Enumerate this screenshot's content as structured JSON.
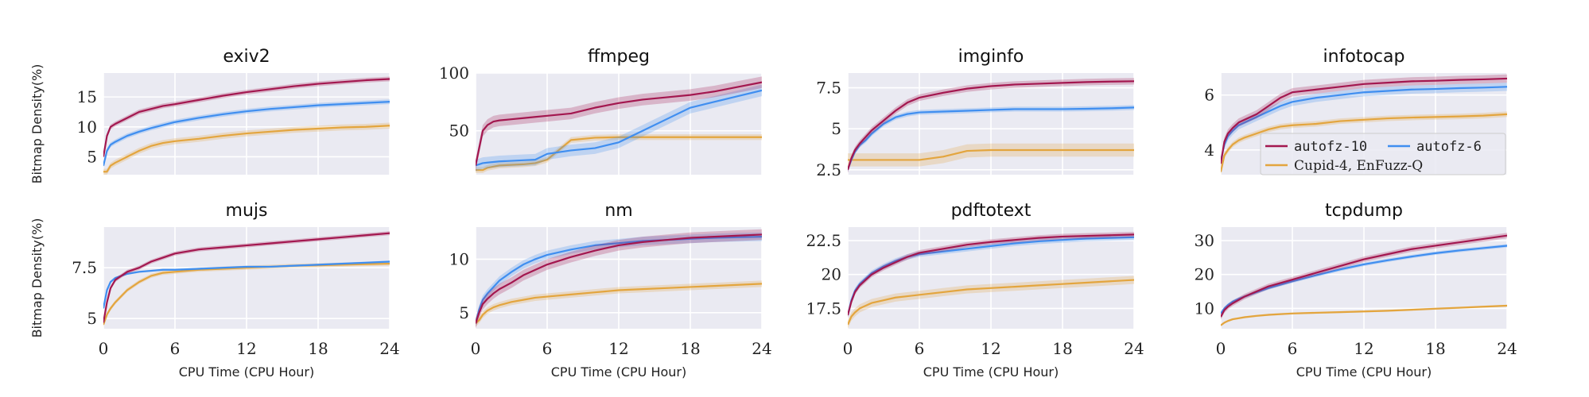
{
  "chart_data": {
    "type": "line",
    "xlabel": "CPU Time (CPU Hour)",
    "ylabel": "Bitmap Density(%)",
    "xlim": [
      0,
      24
    ],
    "xticks": [
      0,
      6,
      12,
      18,
      24
    ],
    "grid": true,
    "legend": {
      "placement": "in-panel infotocap, bottom-right",
      "entries": [
        {
          "key": "autofz10",
          "label": "autofz-10"
        },
        {
          "key": "autofz6",
          "label": "autofz-6"
        },
        {
          "key": "cupid",
          "label": "Cupid-4, EnFuzz-Q"
        }
      ]
    },
    "colors": {
      "autofz10": "#a3174f",
      "autofz6": "#3f8ef0",
      "cupid": "#e3a53e"
    },
    "x": [
      0,
      0.3,
      0.6,
      1,
      1.5,
      2,
      3,
      4,
      5,
      6,
      8,
      10,
      12,
      14,
      16,
      18,
      20,
      22,
      24
    ],
    "panels": [
      {
        "title": "exiv2",
        "ylim": [
          2,
          19
        ],
        "yticks": [
          5,
          10,
          15
        ],
        "series": {
          "autofz10": {
            "values": [
              5,
              8.5,
              10,
              10.5,
              11,
              11.5,
              12.5,
              13,
              13.5,
              13.8,
              14.5,
              15.2,
              15.8,
              16.3,
              16.8,
              17.2,
              17.5,
              17.8,
              18
            ],
            "band": 0.4
          },
          "autofz6": {
            "values": [
              3.5,
              6,
              7,
              7.5,
              8,
              8.5,
              9.2,
              9.8,
              10.3,
              10.8,
              11.5,
              12.1,
              12.6,
              13,
              13.3,
              13.6,
              13.8,
              14,
              14.2
            ],
            "band": 0.4
          },
          "cupid": {
            "values": [
              2.5,
              2.5,
              3.5,
              4,
              4.5,
              5,
              6,
              6.8,
              7.3,
              7.6,
              8,
              8.5,
              8.9,
              9.2,
              9.5,
              9.7,
              9.9,
              10,
              10.2
            ],
            "band": 0.5
          }
        }
      },
      {
        "title": "ffmpeg",
        "ylim": [
          12,
          100
        ],
        "yticks": [
          50,
          100
        ],
        "series": {
          "autofz10": {
            "values": [
              20,
              35,
              50,
              55,
              58,
              59,
              60,
              61,
              62,
              63,
              65,
              70,
              74,
              77,
              79,
              81,
              84,
              88,
              92
            ],
            "band": 5
          },
          "autofz6": {
            "values": [
              20,
              21,
              22,
              22.5,
              23,
              23.5,
              24,
              24.5,
              25,
              30,
              33,
              35,
              40,
              50,
              60,
              70,
              75,
              80,
              85
            ],
            "band": 5
          },
          "cupid": {
            "values": [
              16,
              16,
              16,
              18,
              19,
              20,
              20.5,
              21,
              22,
              25,
              42,
              44,
              44.5,
              44.5,
              44.5,
              44.5,
              44.5,
              44.5,
              44.5
            ],
            "band": 2.5
          }
        }
      },
      {
        "title": "imginfo",
        "ylim": [
          2.2,
          8.4
        ],
        "yticks": [
          2.5,
          5.0,
          7.5
        ],
        "series": {
          "autofz10": {
            "values": [
              2.5,
              3.2,
              3.7,
              4.1,
              4.5,
              4.9,
              5.5,
              6.1,
              6.6,
              6.9,
              7.2,
              7.45,
              7.6,
              7.7,
              7.75,
              7.8,
              7.85,
              7.88,
              7.9
            ],
            "band": 0.2
          },
          "autofz6": {
            "values": [
              2.5,
              3.1,
              3.6,
              4,
              4.3,
              4.7,
              5.3,
              5.7,
              5.9,
              6,
              6.05,
              6.1,
              6.15,
              6.2,
              6.2,
              6.2,
              6.22,
              6.25,
              6.3
            ],
            "band": 0.15
          },
          "cupid": {
            "values": [
              3.1,
              3.1,
              3.1,
              3.1,
              3.1,
              3.1,
              3.1,
              3.1,
              3.1,
              3.1,
              3.3,
              3.65,
              3.7,
              3.7,
              3.7,
              3.7,
              3.7,
              3.7,
              3.7
            ],
            "band": 0.4
          }
        }
      },
      {
        "title": "infotocap",
        "ylim": [
          3.1,
          6.8
        ],
        "yticks": [
          4,
          6
        ],
        "series": {
          "autofz10": {
            "values": [
              3.5,
              4.3,
              4.6,
              4.8,
              5,
              5.1,
              5.3,
              5.6,
              5.9,
              6.1,
              6.2,
              6.3,
              6.4,
              6.45,
              6.5,
              6.52,
              6.55,
              6.57,
              6.6
            ],
            "band": 0.15
          },
          "autofz6": {
            "values": [
              3.6,
              4.2,
              4.5,
              4.7,
              4.9,
              5,
              5.2,
              5.4,
              5.6,
              5.75,
              5.9,
              6,
              6.1,
              6.15,
              6.2,
              6.22,
              6.25,
              6.27,
              6.3
            ],
            "band": 0.15
          },
          "cupid": {
            "values": [
              3.2,
              3.8,
              4,
              4.2,
              4.35,
              4.45,
              4.6,
              4.75,
              4.85,
              4.9,
              4.95,
              5.05,
              5.1,
              5.15,
              5.18,
              5.2,
              5.22,
              5.25,
              5.3
            ],
            "band": 0.1
          }
        }
      },
      {
        "title": "mujs",
        "ylim": [
          4.5,
          9.5
        ],
        "yticks": [
          5.0,
          7.5
        ],
        "series": {
          "autofz10": {
            "values": [
              4.8,
              5.8,
              6.5,
              6.9,
              7.1,
              7.3,
              7.5,
              7.8,
              8,
              8.2,
              8.4,
              8.5,
              8.6,
              8.7,
              8.8,
              8.9,
              9,
              9.1,
              9.2
            ],
            "band": 0.1
          },
          "autofz6": {
            "values": [
              5.5,
              6.4,
              6.8,
              7,
              7.1,
              7.2,
              7.3,
              7.35,
              7.4,
              7.4,
              7.45,
              7.5,
              7.55,
              7.55,
              7.6,
              7.65,
              7.7,
              7.75,
              7.8
            ],
            "band": 0.05
          },
          "cupid": {
            "values": [
              4.7,
              5.2,
              5.5,
              5.8,
              6.1,
              6.4,
              6.8,
              7.1,
              7.25,
              7.3,
              7.4,
              7.45,
              7.5,
              7.55,
              7.6,
              7.62,
              7.65,
              7.68,
              7.7
            ],
            "band": 0.1
          }
        }
      },
      {
        "title": "nm",
        "ylim": [
          3.5,
          13
        ],
        "yticks": [
          5,
          10
        ],
        "series": {
          "autofz10": {
            "values": [
              4,
              5,
              5.8,
              6.3,
              6.8,
              7.2,
              7.8,
              8.5,
              9,
              9.5,
              10.2,
              10.8,
              11.3,
              11.6,
              11.8,
              12,
              12.1,
              12.2,
              12.3
            ],
            "band": 0.5
          },
          "autofz6": {
            "values": [
              4,
              5.3,
              6.2,
              6.8,
              7.4,
              8,
              8.8,
              9.5,
              10,
              10.4,
              10.9,
              11.3,
              11.5,
              11.7,
              11.8,
              11.9,
              12,
              12.05,
              12.1
            ],
            "band": 0.4
          },
          "cupid": {
            "values": [
              4,
              4.3,
              4.8,
              5.2,
              5.5,
              5.7,
              6,
              6.2,
              6.4,
              6.5,
              6.7,
              6.9,
              7.1,
              7.2,
              7.3,
              7.4,
              7.5,
              7.6,
              7.7
            ],
            "band": 0.3
          }
        }
      },
      {
        "title": "pdftotext",
        "ylim": [
          16,
          23.5
        ],
        "yticks": [
          17.5,
          20.0,
          22.5
        ],
        "series": {
          "autofz10": {
            "values": [
              17,
              18,
              18.7,
              19.2,
              19.6,
              20,
              20.5,
              20.9,
              21.3,
              21.6,
              21.9,
              22.2,
              22.4,
              22.55,
              22.7,
              22.8,
              22.85,
              22.9,
              22.95
            ],
            "band": 0.2
          },
          "autofz6": {
            "values": [
              17,
              18.1,
              18.8,
              19.3,
              19.7,
              20.1,
              20.6,
              21,
              21.3,
              21.5,
              21.7,
              21.9,
              22.1,
              22.3,
              22.45,
              22.55,
              22.65,
              22.7,
              22.75
            ],
            "band": 0.2
          },
          "cupid": {
            "values": [
              16.3,
              16.9,
              17.2,
              17.5,
              17.7,
              17.9,
              18.1,
              18.3,
              18.4,
              18.5,
              18.7,
              18.9,
              19,
              19.1,
              19.2,
              19.3,
              19.4,
              19.5,
              19.6
            ],
            "band": 0.3
          }
        }
      },
      {
        "title": "tcpdump",
        "ylim": [
          4,
          34
        ],
        "yticks": [
          10,
          20,
          30
        ],
        "series": {
          "autofz10": {
            "values": [
              7.5,
              9.5,
              10.5,
              11.5,
              12.5,
              13.5,
              15,
              16.5,
              17.5,
              18.5,
              20.5,
              22.5,
              24.5,
              26,
              27.5,
              28.5,
              29.5,
              30.5,
              31.5
            ],
            "band": 0.8
          },
          "autofz6": {
            "values": [
              8.5,
              10,
              11,
              12,
              12.8,
              13.5,
              14.8,
              16,
              17,
              18,
              19.8,
              21.5,
              23,
              24.2,
              25.3,
              26.3,
              27.1,
              27.8,
              28.5
            ],
            "band": 0.5
          },
          "cupid": {
            "values": [
              5,
              5.8,
              6.3,
              6.8,
              7.1,
              7.4,
              7.8,
              8.1,
              8.3,
              8.5,
              8.7,
              8.9,
              9.1,
              9.3,
              9.6,
              9.9,
              10.2,
              10.5,
              10.8
            ],
            "band": 0.3
          }
        }
      }
    ]
  }
}
